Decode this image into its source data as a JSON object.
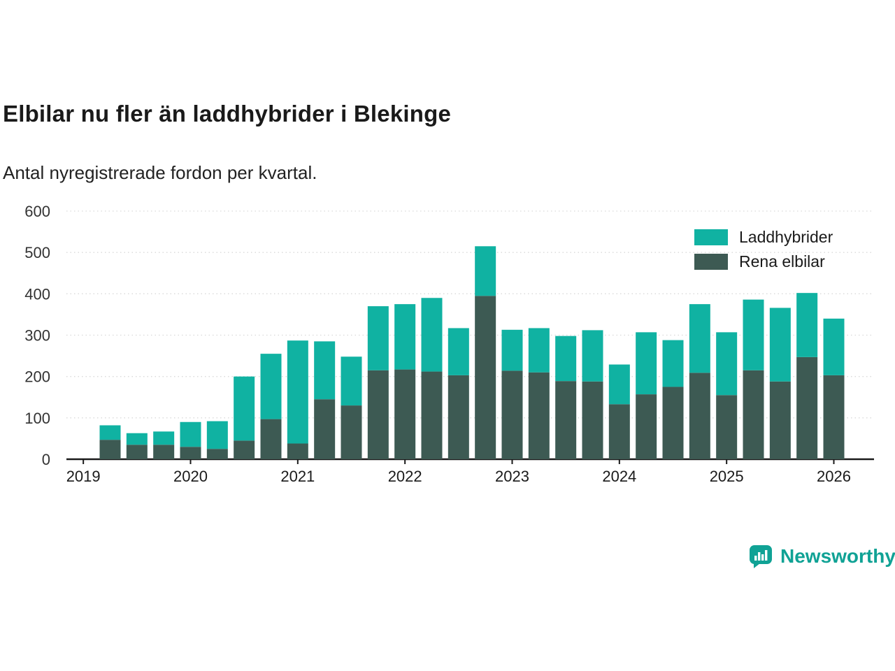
{
  "header": {
    "title": "Elbilar nu fler än laddhybrider i Blekinge",
    "subtitle": "Antal nyregistrerade fordon per kvartal."
  },
  "chart_data": {
    "type": "bar",
    "stacked": true,
    "title": "Elbilar nu fler än laddhybrider i Blekinge",
    "subtitle": "Antal nyregistrerade fordon per kvartal.",
    "xlabel": "",
    "ylabel": "",
    "ylim": [
      0,
      600
    ],
    "yticks": [
      0,
      100,
      200,
      300,
      400,
      500,
      600
    ],
    "grid": true,
    "legend_position": "top-right",
    "x_tick_labels": [
      "2019",
      "2020",
      "2021",
      "2022",
      "2023",
      "2024",
      "2025",
      "2026"
    ],
    "categories": [
      "2019 Q2",
      "2019 Q3",
      "2019 Q4",
      "2020 Q1",
      "2020 Q2",
      "2020 Q3",
      "2020 Q4",
      "2021 Q1",
      "2021 Q2",
      "2021 Q3",
      "2021 Q4",
      "2022 Q1",
      "2022 Q2",
      "2022 Q3",
      "2022 Q4",
      "2023 Q1",
      "2023 Q2",
      "2023 Q3",
      "2023 Q4",
      "2024 Q1",
      "2024 Q2",
      "2024 Q3",
      "2024 Q4",
      "2025 Q1",
      "2025 Q2",
      "2025 Q3",
      "2025 Q4",
      "2026 Q1"
    ],
    "series": [
      {
        "name": "Rena elbilar",
        "color": "#3d5a53",
        "values": [
          47,
          35,
          35,
          30,
          25,
          45,
          97,
          38,
          145,
          130,
          215,
          217,
          212,
          203,
          395,
          214,
          210,
          189,
          188,
          133,
          157,
          175,
          209,
          155,
          215,
          188,
          247,
          203
        ]
      },
      {
        "name": "Laddhybrider",
        "color": "#10b2a2",
        "values": [
          35,
          28,
          32,
          60,
          67,
          155,
          158,
          249,
          140,
          118,
          155,
          158,
          178,
          114,
          120,
          99,
          107,
          109,
          124,
          96,
          150,
          113,
          166,
          152,
          171,
          178,
          155,
          137
        ]
      }
    ],
    "totals": [
      82,
      63,
      67,
      90,
      92,
      200,
      255,
      287,
      285,
      248,
      370,
      375,
      390,
      317,
      515,
      313,
      317,
      298,
      312,
      229,
      307,
      288,
      375,
      307,
      386,
      366,
      402,
      340
    ]
  },
  "legend": {
    "items": [
      {
        "label": "Laddhybrider",
        "color": "#10b2a2"
      },
      {
        "label": "Rena elbilar",
        "color": "#3d5a53"
      }
    ]
  },
  "footer": {
    "brand": "Newsworthy",
    "brand_color": "#10a295"
  }
}
